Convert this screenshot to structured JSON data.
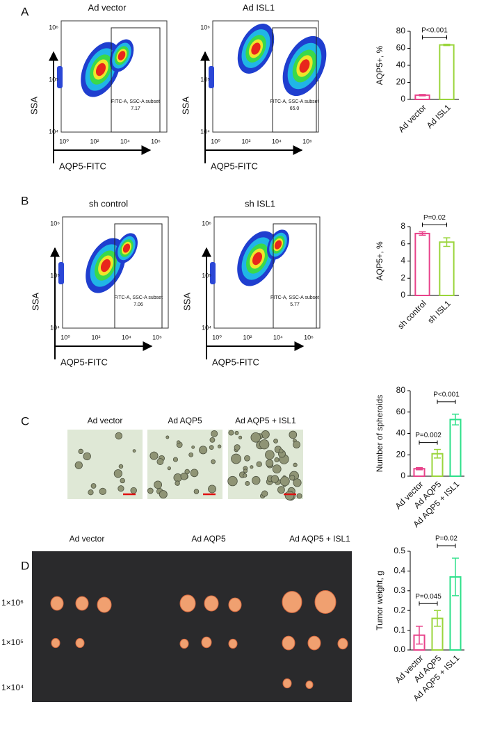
{
  "panel_labels": [
    "A",
    "B",
    "C",
    "D"
  ],
  "flow": [
    {
      "plots": [
        {
          "title": "Ad vector",
          "gate_label": "FITC-A, SSC-A subset",
          "gate_value": "7.17"
        },
        {
          "title": "Ad ISL1",
          "gate_label": "FITC-A, SSC-A subset",
          "gate_value": "65.0"
        }
      ]
    },
    {
      "plots": [
        {
          "title": "sh control",
          "gate_label": "FITC-A, SSC-A subset",
          "gate_value": "7.06"
        },
        {
          "title": "sh ISL1",
          "gate_label": "FITC-A, SSC-A subset",
          "gate_value": "5.77"
        }
      ]
    }
  ],
  "flow_axes": {
    "y_label": "SSA",
    "x_label": "AQP5-FITC",
    "x_ticks": [
      "10⁰",
      "10²",
      "10⁴",
      "10⁶"
    ],
    "y_ticks": [
      "10⁶",
      "10⁵",
      "10⁴"
    ]
  },
  "spheroid_images": {
    "titles": [
      "Ad vector",
      "Ad AQP5",
      "Ad AQP5 + ISL1"
    ]
  },
  "tumor_photo": {
    "groups": [
      "Ad vector",
      "Ad AQP5",
      "Ad AQP5 + ISL1"
    ],
    "rows": [
      "1×10⁶",
      "1×10⁵",
      "1×10⁴"
    ]
  },
  "chart_data": [
    {
      "type": "bar",
      "y_label": "AQP5+, %",
      "categories": [
        "Ad vector",
        "Ad ISL1"
      ],
      "values": [
        5,
        64
      ],
      "errors": [
        0.8,
        0.8
      ],
      "colors": [
        "#e8428a",
        "#9ad53c"
      ],
      "ylim": [
        0,
        80
      ],
      "yticks": [
        0,
        20,
        40,
        60,
        80
      ],
      "annotations": [
        "P<0.001"
      ]
    },
    {
      "type": "bar",
      "y_label": "AQP5+, %",
      "categories": [
        "sh control",
        "sh ISL1"
      ],
      "values": [
        7.2,
        6.2
      ],
      "errors": [
        0.2,
        0.5
      ],
      "colors": [
        "#e8428a",
        "#9ad53c"
      ],
      "ylim": [
        0,
        8
      ],
      "yticks": [
        0,
        2,
        4,
        6,
        8
      ],
      "annotations": [
        "P=0.02"
      ]
    },
    {
      "type": "bar",
      "y_label": "Number of spheroids",
      "categories": [
        "Ad vector",
        "Ad AQP5",
        "Ad AQP5 + ISL1"
      ],
      "values": [
        7,
        21,
        53
      ],
      "errors": [
        1,
        4,
        5
      ],
      "colors": [
        "#e8428a",
        "#9ad53c",
        "#2ee08a"
      ],
      "ylim": [
        0,
        80
      ],
      "yticks": [
        0,
        20,
        40,
        60,
        80
      ],
      "annotations": [
        "P=0.002",
        "P<0.001"
      ]
    },
    {
      "type": "bar",
      "y_label": "Tumor weight, g",
      "categories": [
        "Ad vector",
        "Ad AQP5",
        "Ad AQP5 + ISL1"
      ],
      "values": [
        0.075,
        0.16,
        0.37
      ],
      "errors": [
        0.045,
        0.04,
        0.095
      ],
      "colors": [
        "#e8428a",
        "#9ad53c",
        "#2ee08a"
      ],
      "ylim": [
        0,
        0.5
      ],
      "yticks": [
        {
          "value": 0,
          "label": "0.0"
        },
        0.1,
        0.2,
        0.3,
        0.4,
        0.5
      ],
      "annotations": [
        "P=0.045",
        "P=0.02"
      ]
    }
  ]
}
